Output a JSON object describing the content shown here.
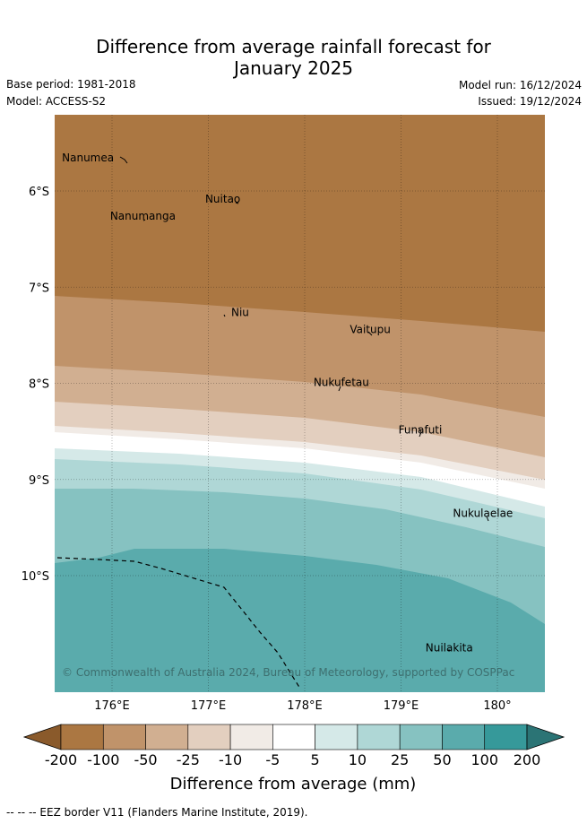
{
  "title_line1": "Difference from average rainfall forecast for",
  "title_line2": "January 2025",
  "base_period": "Base period: 1981-2018",
  "model": "Model: ACCESS-S2",
  "model_run": "Model run: 16/12/2024",
  "issued": "Issued: 19/12/2024",
  "places": [
    {
      "name": "Nanumea",
      "lon": 175.75,
      "lat": -5.69
    },
    {
      "name": "Nuitao",
      "lon": 177.15,
      "lat": -6.12
    },
    {
      "name": "Nanumanga",
      "lon": 176.32,
      "lat": -6.3
    },
    {
      "name": "Niu",
      "lon": 177.33,
      "lat": -7.3
    },
    {
      "name": "Vaitupu",
      "lon": 178.68,
      "lat": -7.48
    },
    {
      "name": "Nukufetau",
      "lon": 178.38,
      "lat": -8.03
    },
    {
      "name": "Funafuti",
      "lon": 179.2,
      "lat": -8.52
    },
    {
      "name": "Nukulaelae",
      "lon": 179.85,
      "lat": -9.39
    },
    {
      "name": "Nuilakita",
      "lon": 179.5,
      "lat": -10.79
    }
  ],
  "x_ticks": [
    "176°E",
    "177°E",
    "178°E",
    "179°E",
    "180°"
  ],
  "y_ticks": [
    "6°S",
    "7°S",
    "8°S",
    "9°S",
    "10°S"
  ],
  "copyright": "© Commonwealth of Australia 2024, Bureau of Meteorology, supported by COSPPac",
  "colorbar": {
    "labels": [
      "-200",
      "-100",
      "-50",
      "-25",
      "-10",
      "-5",
      "5",
      "10",
      "25",
      "50",
      "100",
      "200"
    ],
    "colors": [
      "#8a5a2b",
      "#ab7742",
      "#c0936a",
      "#d1af91",
      "#e3cfbf",
      "#f1ebe6",
      "#ffffff",
      "#d5e9e8",
      "#afd7d6",
      "#86c2c1",
      "#5aabac",
      "#36999a",
      "#2b7475"
    ],
    "title": "Difference from average (mm)"
  },
  "footer": "-- -- -- EEZ border V11 (Flanders Marine Institute, 2019)."
}
